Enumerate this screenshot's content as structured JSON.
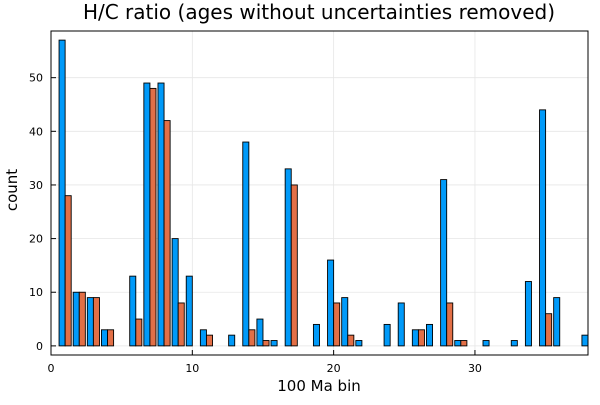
{
  "chart_data": {
    "type": "bar",
    "title": "H/C ratio (ages without uncertainties removed)",
    "xlabel": "100 Ma bin",
    "ylabel": "count",
    "xlim": [
      0,
      38
    ],
    "ylim": [
      -1.7,
      58.7
    ],
    "xticks": [
      0,
      10,
      20,
      30
    ],
    "yticks": [
      0,
      10,
      20,
      30,
      40,
      50
    ],
    "grid": true,
    "legend": "none",
    "x": [
      1,
      2,
      3,
      4,
      5,
      6,
      7,
      8,
      9,
      10,
      11,
      12,
      13,
      14,
      15,
      16,
      17,
      18,
      19,
      20,
      21,
      22,
      23,
      24,
      25,
      26,
      27,
      28,
      29,
      30,
      31,
      32,
      33,
      34,
      35,
      36,
      37,
      38
    ],
    "series": [
      {
        "color": "#009af9",
        "values": [
          57,
          10,
          9,
          3,
          0,
          13,
          49,
          49,
          20,
          13,
          3,
          0,
          2,
          38,
          5,
          1,
          33,
          0,
          4,
          16,
          9,
          1,
          0,
          4,
          8,
          3,
          4,
          31,
          1,
          0,
          1,
          0,
          1,
          12,
          44,
          9,
          0,
          2
        ]
      },
      {
        "color": "#e26f46",
        "values": [
          28,
          10,
          9,
          3,
          0,
          5,
          48,
          42,
          8,
          0,
          2,
          0,
          0,
          3,
          1,
          0,
          30,
          0,
          0,
          8,
          2,
          0,
          0,
          0,
          0,
          3,
          0,
          8,
          1,
          0,
          0,
          0,
          0,
          0,
          6,
          0,
          0,
          0
        ]
      }
    ]
  }
}
